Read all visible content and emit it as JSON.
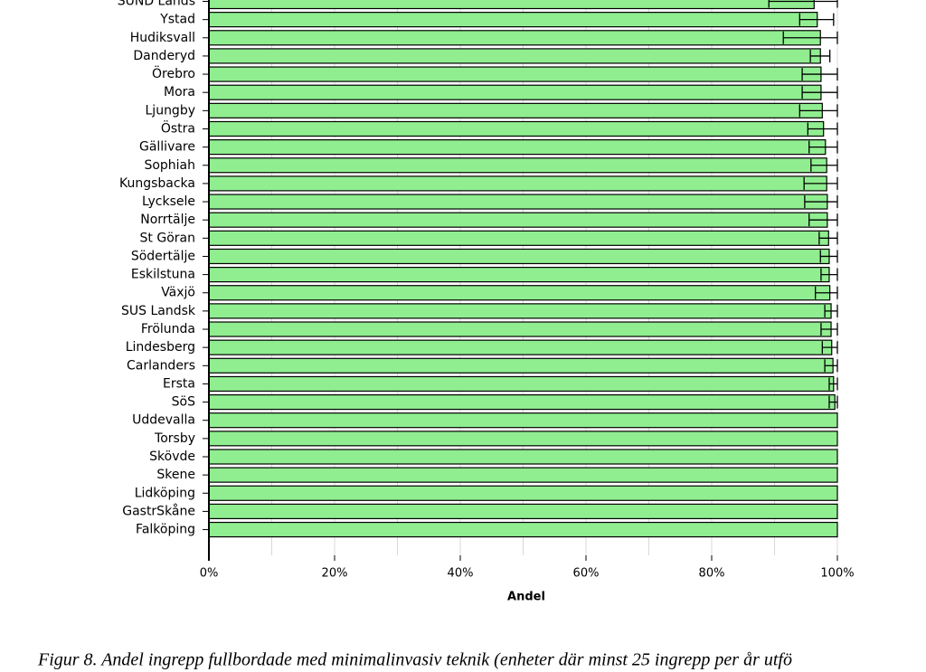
{
  "chart_data": {
    "type": "barh",
    "categories": [
      "SUND Lands",
      "Ystad",
      "Hudiksvall",
      "Danderyd",
      "Örebro",
      "Mora",
      "Ljungby",
      "Östra",
      "Gällivare",
      "Sophiah",
      "Kungsbacka",
      "Lycksele",
      "Norrtälje",
      "St Göran",
      "Södertälje",
      "Eskilstuna",
      "Växjö",
      "SUS Landsk",
      "Frölunda",
      "Lindesberg",
      "Carlanders",
      "Ersta",
      "SöS",
      "Uddevalla",
      "Torsby",
      "Skövde",
      "Skene",
      "Lidköping",
      "GastrSkåne",
      "Falköping"
    ],
    "values": [
      96.3,
      96.8,
      97.3,
      97.3,
      97.4,
      97.4,
      97.6,
      97.8,
      98.1,
      98.3,
      98.3,
      98.4,
      98.4,
      98.6,
      98.7,
      98.7,
      98.8,
      99.0,
      99.0,
      99.1,
      99.3,
      99.4,
      99.6,
      100,
      100,
      100,
      100,
      100,
      100,
      100
    ],
    "ci_low": [
      89.1,
      94.0,
      91.4,
      95.7,
      94.4,
      94.4,
      94.0,
      95.3,
      95.5,
      95.8,
      94.7,
      94.8,
      95.5,
      97.1,
      97.3,
      97.4,
      96.5,
      98.0,
      97.4,
      97.6,
      98.0,
      98.7,
      98.7,
      null,
      null,
      null,
      null,
      null,
      null,
      null
    ],
    "ci_high": [
      100,
      99.4,
      100,
      98.8,
      100,
      100,
      100,
      100,
      100,
      100,
      100,
      100,
      100,
      100,
      100,
      100,
      100,
      100,
      100,
      100,
      100,
      100,
      100,
      null,
      null,
      null,
      null,
      null,
      null,
      null
    ],
    "color": "#90ee90",
    "xlim": [
      0,
      100
    ],
    "xticks": [
      {
        "value": 0,
        "label": "0%"
      },
      {
        "value": 20,
        "label": "20%"
      },
      {
        "value": 40,
        "label": "40%"
      },
      {
        "value": 60,
        "label": "60%"
      },
      {
        "value": 80,
        "label": "80%"
      },
      {
        "value": 100,
        "label": "100%"
      }
    ],
    "xminorticks": [
      10,
      30,
      50,
      70,
      90
    ],
    "grid": true,
    "xlabel": "Andel",
    "caption": "Figur 8. Andel ingrepp fullbordade med minimalinvasiv teknik (enheter där minst 25 ingrepp per år utfö"
  }
}
